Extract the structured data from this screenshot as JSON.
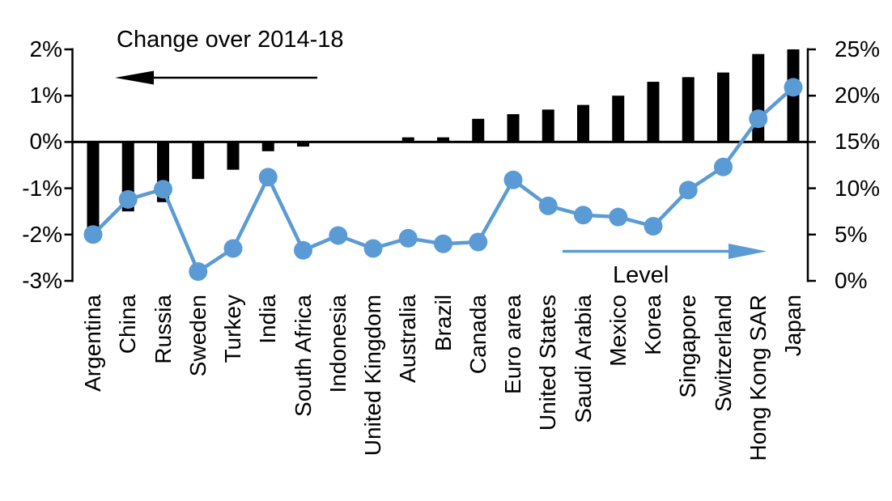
{
  "chart_data": {
    "type": "combo-bar-line",
    "title_left": "Change over 2014-18",
    "title_right": "Level",
    "legend_position": "annotations-with-arrows",
    "grid": "off",
    "categories": [
      "Argentina",
      "China",
      "Russia",
      "Sweden",
      "Turkey",
      "India",
      "South Africa",
      "Indonesia",
      "United Kingdom",
      "Australia",
      "Brazil",
      "Canada",
      "Euro area",
      "United States",
      "Saudi Arabia",
      "Mexico",
      "Korea",
      "Singapore",
      "Switzerland",
      "Hong Kong SAR",
      "Japan"
    ],
    "series": [
      {
        "name": "Change over 2014-18",
        "type": "bar",
        "axis": "left",
        "color": "#000000",
        "values": [
          -1.9,
          -1.5,
          -1.3,
          -0.8,
          -0.6,
          -0.2,
          -0.1,
          0,
          0,
          0.1,
          0.1,
          0.5,
          0.6,
          0.7,
          0.8,
          1.0,
          1.3,
          1.4,
          1.5,
          1.9,
          2.0
        ]
      },
      {
        "name": "Level",
        "type": "line",
        "axis": "right",
        "color": "#5b9bd5",
        "values": [
          5.0,
          8.8,
          9.9,
          1.0,
          3.5,
          11.2,
          3.3,
          4.9,
          3.5,
          4.6,
          4.0,
          4.2,
          10.9,
          8.1,
          7.1,
          6.9,
          5.9,
          9.8,
          12.3,
          17.5,
          20.9
        ]
      }
    ],
    "left_axis": {
      "min": -3,
      "max": 2,
      "tick_labels": [
        "2%",
        "1%",
        "0%",
        "-1%",
        "-2%",
        "-3%"
      ]
    },
    "right_axis": {
      "min": 0,
      "max": 25,
      "tick_labels": [
        "25%",
        "20%",
        "15%",
        "10%",
        "5%",
        "0%"
      ]
    },
    "colors": {
      "bar": "#000000",
      "line": "#5b9bd5",
      "axis": "#000000"
    }
  }
}
